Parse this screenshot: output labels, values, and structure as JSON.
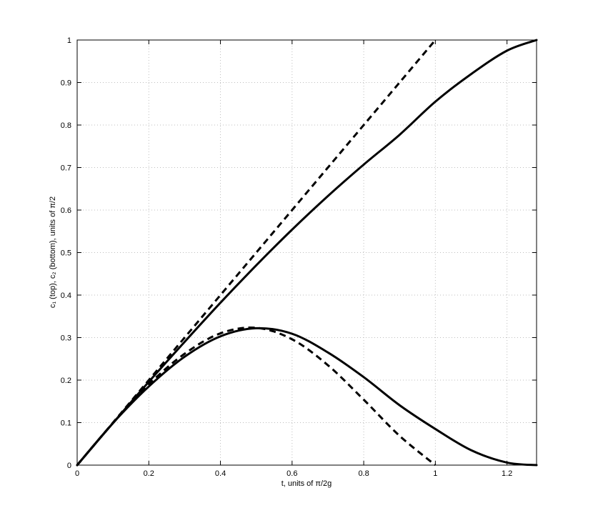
{
  "chart_data": {
    "type": "line",
    "xlabel": "t, units of π/2g",
    "ylabel": "c₁ (top), c₂ (bottom), units of π/2",
    "xlim": [
      0,
      1.2825
    ],
    "ylim": [
      0,
      1
    ],
    "grid": true,
    "xticks": [
      "0",
      "0.2",
      "0.4",
      "0.6",
      "0.8",
      "1",
      "1.2"
    ],
    "yticks": [
      "0",
      "0.1",
      "0.2",
      "0.3",
      "0.4",
      "0.5",
      "0.6",
      "0.7",
      "0.8",
      "0.9",
      "1"
    ],
    "series": [
      {
        "style": "solid",
        "x": [
          0,
          0.1,
          0.2,
          0.3,
          0.4,
          0.5,
          0.6,
          0.7,
          0.8,
          0.9,
          1.0,
          1.1,
          1.2,
          1.2825
        ],
        "y": [
          0,
          0.099,
          0.196,
          0.29,
          0.382,
          0.47,
          0.554,
          0.633,
          0.707,
          0.777,
          0.855,
          0.92,
          0.975,
          1.0
        ]
      },
      {
        "style": "dashed",
        "x": [
          0,
          0.1,
          0.2,
          0.3,
          0.4,
          0.5,
          0.6,
          0.7,
          0.8,
          0.9,
          1.0
        ],
        "y": [
          0,
          0.1,
          0.2,
          0.3,
          0.4,
          0.5,
          0.6,
          0.7,
          0.8,
          0.9,
          1.0
        ]
      },
      {
        "style": "solid",
        "x": [
          0,
          0.1,
          0.2,
          0.3,
          0.4,
          0.5,
          0.6,
          0.7,
          0.8,
          0.9,
          1.0,
          1.1,
          1.2,
          1.2825
        ],
        "y": [
          0,
          0.099,
          0.185,
          0.255,
          0.303,
          0.322,
          0.309,
          0.265,
          0.207,
          0.141,
          0.085,
          0.035,
          0.006,
          0.0
        ]
      },
      {
        "style": "dashed",
        "x": [
          0,
          0.1,
          0.2,
          0.3,
          0.4,
          0.5,
          0.6,
          0.7,
          0.8,
          0.9,
          1.0
        ],
        "y": [
          0,
          0.099,
          0.19,
          0.262,
          0.31,
          0.323,
          0.296,
          0.235,
          0.154,
          0.069,
          0.0
        ]
      }
    ]
  }
}
